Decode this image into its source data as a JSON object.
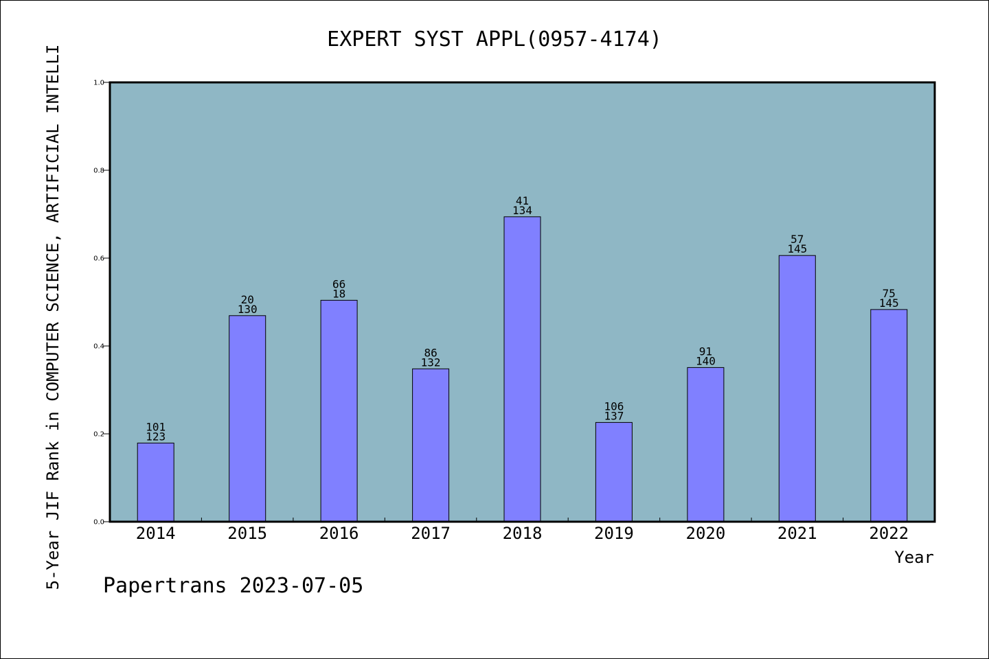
{
  "chart_data": {
    "type": "bar",
    "title": "EXPERT SYST APPL(0957-4174)",
    "xlabel": "Year",
    "ylabel": "5-Year JIF Rank in COMPUTER SCIENCE, ARTIFICIAL INTELLI",
    "ylim": [
      0,
      1.0
    ],
    "yticks": [
      "0.0",
      "0.2",
      "0.4",
      "0.6",
      "0.8",
      "1.0"
    ],
    "categories": [
      "2014",
      "2015",
      "2016",
      "2017",
      "2018",
      "2019",
      "2020",
      "2021",
      "2022"
    ],
    "values": [
      0.179,
      0.469,
      0.504,
      0.348,
      0.694,
      0.226,
      0.351,
      0.606,
      0.483
    ],
    "rank_labels": [
      "101",
      "20",
      "66",
      "86",
      "41",
      "106",
      "91",
      "57",
      "75"
    ],
    "total_labels": [
      "123",
      "130",
      "18",
      "132",
      "134",
      "137",
      "140",
      "145",
      "145"
    ],
    "grid": false,
    "plot_background": "#8fb7c5",
    "bar_color": "#8080ff"
  },
  "footer": "Papertrans 2023-07-05"
}
